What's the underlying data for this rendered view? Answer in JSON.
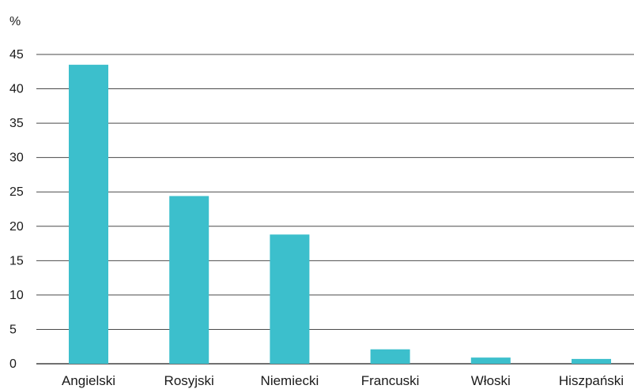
{
  "chart_data": {
    "type": "bar",
    "unit_label": "%",
    "categories": [
      "Angielski",
      "Rosyjski",
      "Niemiecki",
      "Francuski",
      "Włoski",
      "Hiszpański"
    ],
    "values": [
      43.5,
      24.4,
      18.8,
      2.1,
      0.9,
      0.7
    ],
    "ylim": [
      0,
      45
    ],
    "yticks": [
      0,
      5,
      10,
      15,
      20,
      25,
      30,
      35,
      40,
      45
    ],
    "grid": true,
    "bar_color": "#3cbfcc"
  }
}
